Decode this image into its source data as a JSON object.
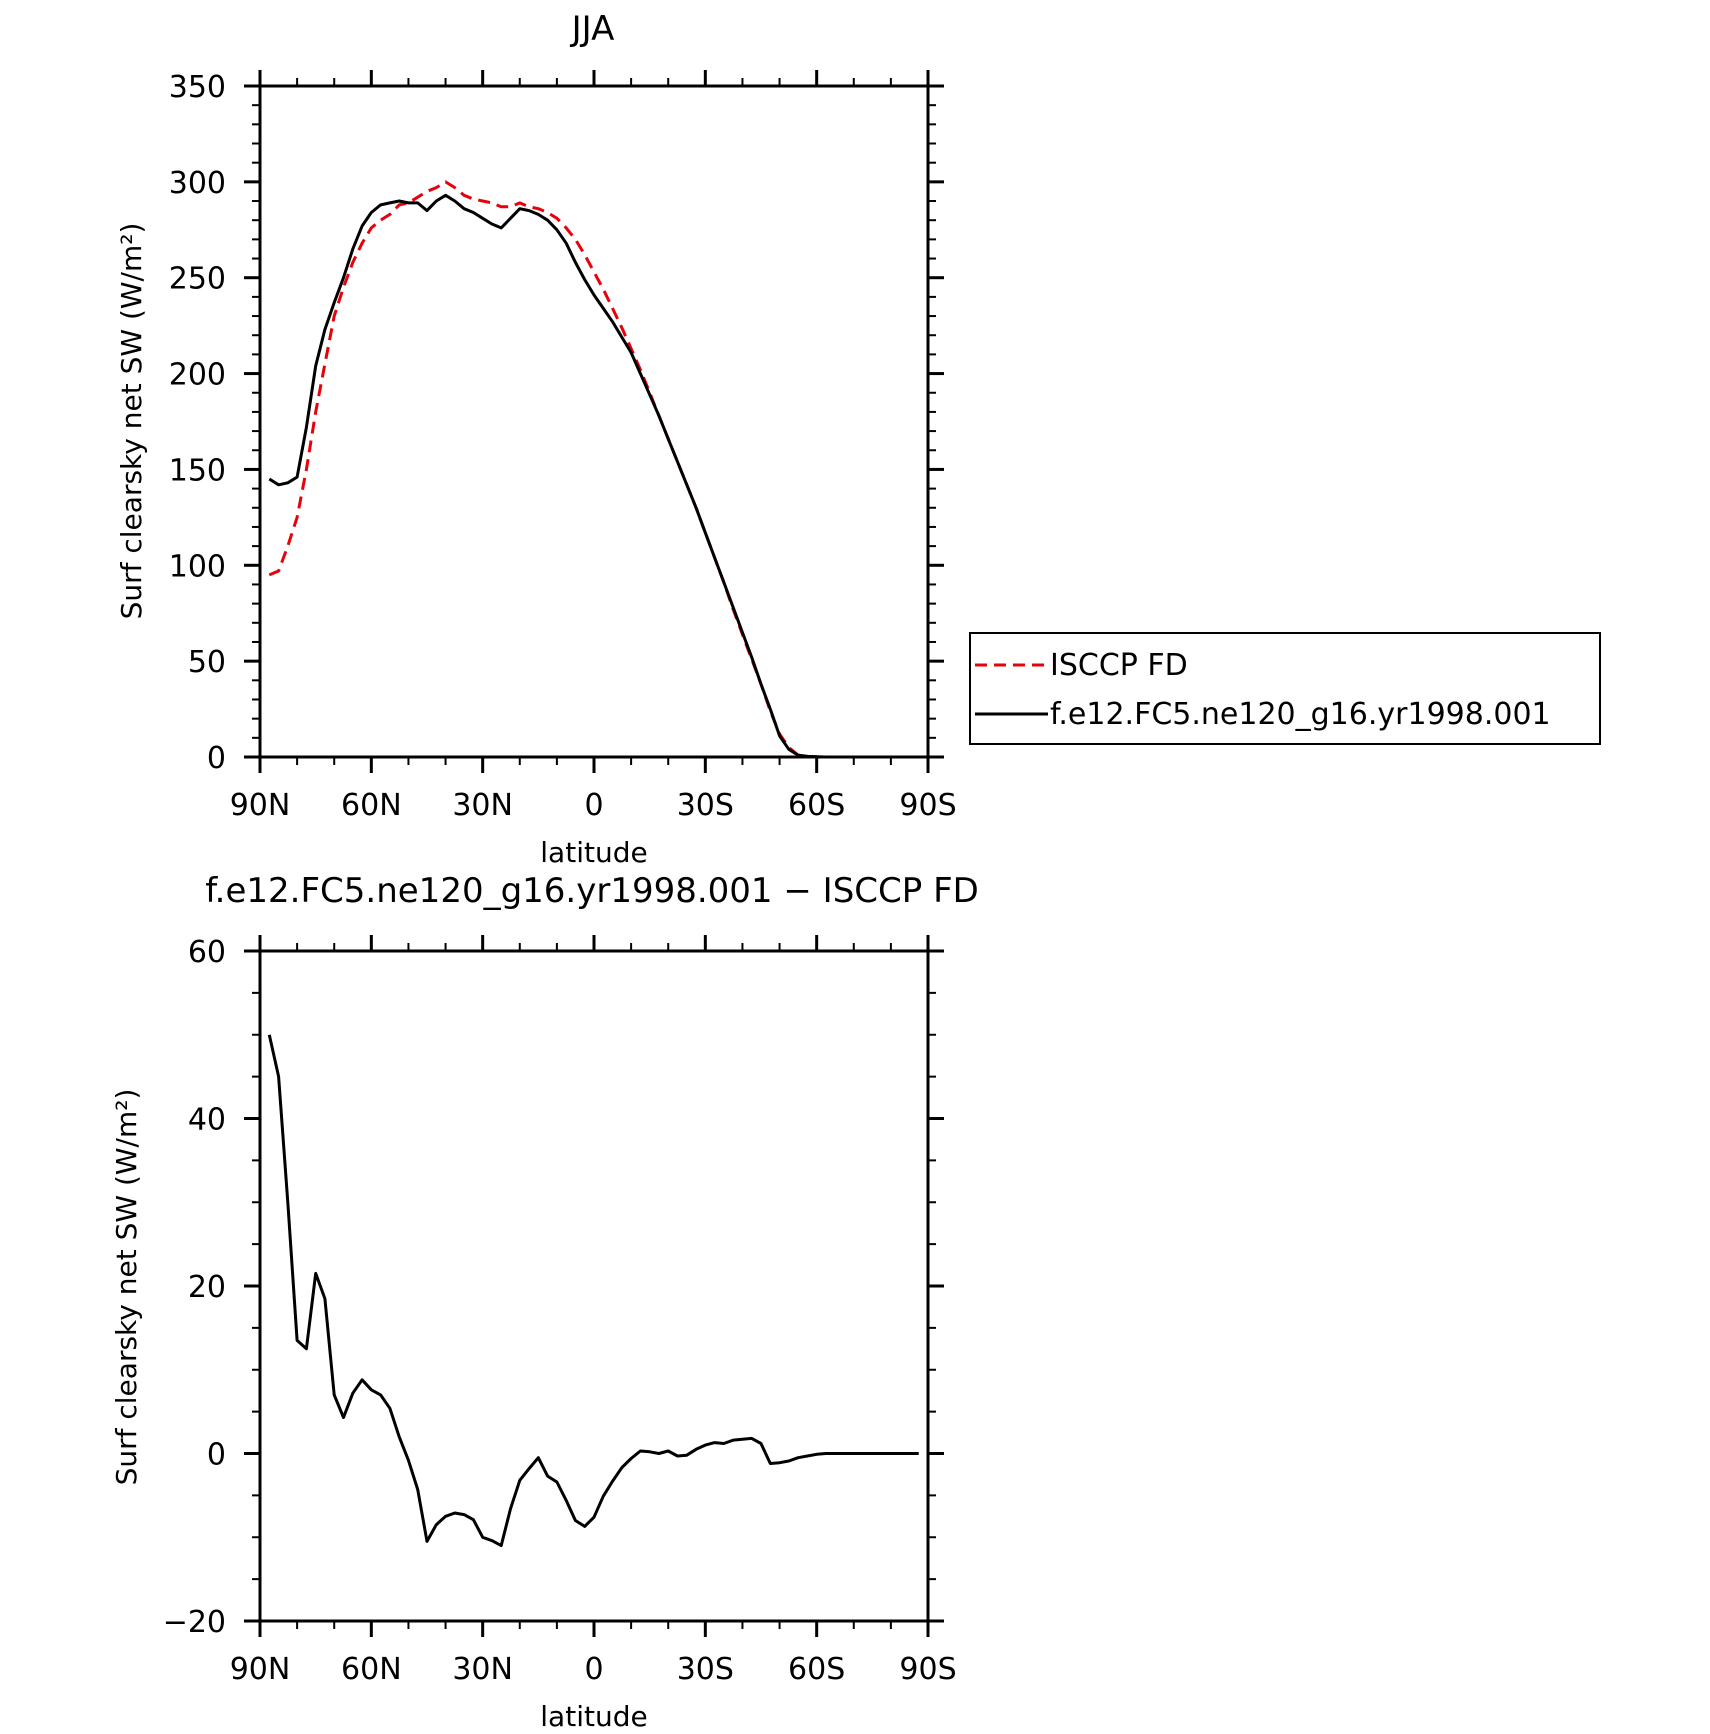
{
  "chart_data": [
    {
      "type": "line",
      "title": "JJA",
      "xlabel": "latitude",
      "ylabel": "Surf clearsky net SW (W/m²)",
      "xlim": [
        -90,
        90
      ],
      "ylim": [
        0,
        350
      ],
      "xticks": [
        -90,
        -60,
        -30,
        0,
        30,
        60,
        90
      ],
      "xticklabels": [
        "90N",
        "60N",
        "30N",
        "0",
        "30S",
        "60S",
        "90S"
      ],
      "yticks": [
        0,
        50,
        100,
        150,
        200,
        250,
        300,
        350
      ],
      "yticklabels": [
        "0",
        "50",
        "100",
        "150",
        "200",
        "250",
        "300",
        "350"
      ],
      "grid": false,
      "legend": {
        "placement": "outside-right",
        "entries": [
          "ISCCP FD",
          "f.e12.FC5.ne120_g16.yr1998.001"
        ]
      },
      "series": [
        {
          "name": "ISCCP FD",
          "color": "#e8000b",
          "style": "dashed",
          "x": [
            -87.5,
            -85,
            -82.5,
            -80,
            -77.5,
            -75,
            -72.5,
            -70,
            -67.5,
            -65,
            -62.5,
            -60,
            -57.5,
            -55,
            -52.5,
            -50,
            -47.5,
            -45,
            -42.5,
            -40,
            -37.5,
            -35,
            -32.5,
            -30,
            -27.5,
            -25,
            -22.5,
            -20,
            -17.5,
            -15,
            -12.5,
            -10,
            -7.5,
            -5,
            -2.5,
            0,
            2.5,
            5,
            7.5,
            10,
            12.5,
            15,
            17.5,
            20,
            22.5,
            25,
            27.5,
            30,
            32.5,
            35,
            37.5,
            40,
            42.5,
            45,
            47.5,
            50,
            52.5,
            55,
            57.5,
            60,
            62.5,
            65,
            67.5,
            70,
            72.5,
            75,
            77.5,
            80,
            82.5,
            85,
            87.5
          ],
          "values": [
            95,
            97,
            110,
            125,
            150,
            180,
            205,
            230,
            245,
            258,
            268,
            276,
            280,
            283,
            288,
            289,
            292,
            295,
            297,
            300,
            297,
            293,
            291,
            290,
            289,
            287,
            287,
            289,
            287,
            286,
            284,
            281,
            276,
            270,
            262,
            253,
            244,
            234,
            224,
            213,
            202,
            190,
            178,
            166,
            154,
            142,
            130,
            117,
            104,
            91,
            77,
            64,
            51,
            38,
            24,
            12,
            5,
            1,
            0.3,
            0.1,
            0,
            0,
            0,
            0,
            0,
            0,
            0,
            0,
            0,
            0,
            0
          ]
        },
        {
          "name": "f.e12.FC5.ne120_g16.yr1998.001",
          "color": "#000000",
          "style": "solid",
          "x": [
            -87.5,
            -85,
            -82.5,
            -80,
            -77.5,
            -75,
            -72.5,
            -70,
            -67.5,
            -65,
            -62.5,
            -60,
            -57.5,
            -55,
            -52.5,
            -50,
            -47.5,
            -45,
            -42.5,
            -40,
            -37.5,
            -35,
            -32.5,
            -30,
            -27.5,
            -25,
            -22.5,
            -20,
            -17.5,
            -15,
            -12.5,
            -10,
            -7.5,
            -5,
            -2.5,
            0,
            2.5,
            5,
            7.5,
            10,
            12.5,
            15,
            17.5,
            20,
            22.5,
            25,
            27.5,
            30,
            32.5,
            35,
            37.5,
            40,
            42.5,
            45,
            47.5,
            50,
            52.5,
            55,
            57.5,
            60,
            62.5,
            65,
            67.5,
            70,
            72.5,
            75,
            77.5,
            80,
            82.5,
            85,
            87.5
          ],
          "values": [
            145,
            142,
            143,
            146,
            172,
            204,
            223,
            237,
            250,
            265,
            277,
            284,
            288,
            289,
            290,
            289,
            289,
            285,
            290,
            293,
            290,
            286,
            284,
            281,
            278,
            276,
            281,
            286,
            285,
            283,
            280,
            275,
            268,
            258,
            249,
            241,
            234,
            227,
            219,
            211,
            200,
            189,
            178,
            166,
            154,
            142,
            130,
            117,
            104,
            91,
            78,
            65,
            52,
            38,
            25,
            11,
            4,
            1,
            0.3,
            0.1,
            0,
            0,
            0,
            0,
            0,
            0,
            0,
            0,
            0,
            0,
            0
          ]
        }
      ]
    },
    {
      "type": "line",
      "title": "f.e12.FC5.ne120_g16.yr1998.001 − ISCCP FD",
      "xlabel": "latitude",
      "ylabel": "Surf clearsky net SW (W/m²)",
      "xlim": [
        -90,
        90
      ],
      "ylim": [
        -20,
        60
      ],
      "xticks": [
        -90,
        -60,
        -30,
        0,
        30,
        60,
        90
      ],
      "xticklabels": [
        "90N",
        "60N",
        "30N",
        "0",
        "30S",
        "60S",
        "90S"
      ],
      "yticks": [
        -20,
        0,
        20,
        40,
        60
      ],
      "yticklabels": [
        "−20",
        "0",
        "20",
        "40",
        "60"
      ],
      "grid": false,
      "series": [
        {
          "color": "#000000",
          "style": "solid",
          "x": [
            -87.5,
            -85,
            -82.5,
            -80,
            -77.5,
            -75,
            -72.5,
            -70,
            -67.5,
            -65,
            -62.5,
            -60,
            -57.5,
            -55,
            -52.5,
            -50,
            -47.5,
            -45,
            -42.5,
            -40,
            -37.5,
            -35,
            -32.5,
            -30,
            -27.5,
            -25,
            -22.5,
            -20,
            -17.5,
            -15,
            -12.5,
            -10,
            -7.5,
            -5,
            -2.5,
            0,
            2.5,
            5,
            7.5,
            10,
            12.5,
            15,
            17.5,
            20,
            22.5,
            25,
            27.5,
            30,
            32.5,
            35,
            37.5,
            40,
            42.5,
            45,
            47.5,
            50,
            52.5,
            55,
            57.5,
            60,
            62.5,
            65,
            67.5,
            70,
            72.5,
            75,
            77.5,
            80,
            82.5,
            85,
            87.5
          ],
          "values": [
            50,
            45,
            30,
            13.5,
            12.5,
            21.5,
            18.5,
            7,
            4.3,
            7.2,
            8.8,
            7.6,
            7,
            5.4,
            2,
            -0.8,
            -4.3,
            -10.5,
            -8.5,
            -7.5,
            -7.1,
            -7.3,
            -7.9,
            -10,
            -10.4,
            -11,
            -6.6,
            -3.2,
            -1.8,
            -0.5,
            -2.7,
            -3.4,
            -5.6,
            -8,
            -8.7,
            -7.6,
            -5.1,
            -3.3,
            -1.7,
            -0.6,
            0.3,
            0.2,
            0,
            0.3,
            -0.3,
            -0.2,
            0.5,
            1,
            1.3,
            1.2,
            1.6,
            1.7,
            1.8,
            1.2,
            -1.2,
            -1.1,
            -0.9,
            -0.5,
            -0.3,
            -0.1,
            0,
            0,
            0,
            0,
            0,
            0,
            0,
            0,
            0,
            0,
            0
          ]
        }
      ]
    }
  ]
}
